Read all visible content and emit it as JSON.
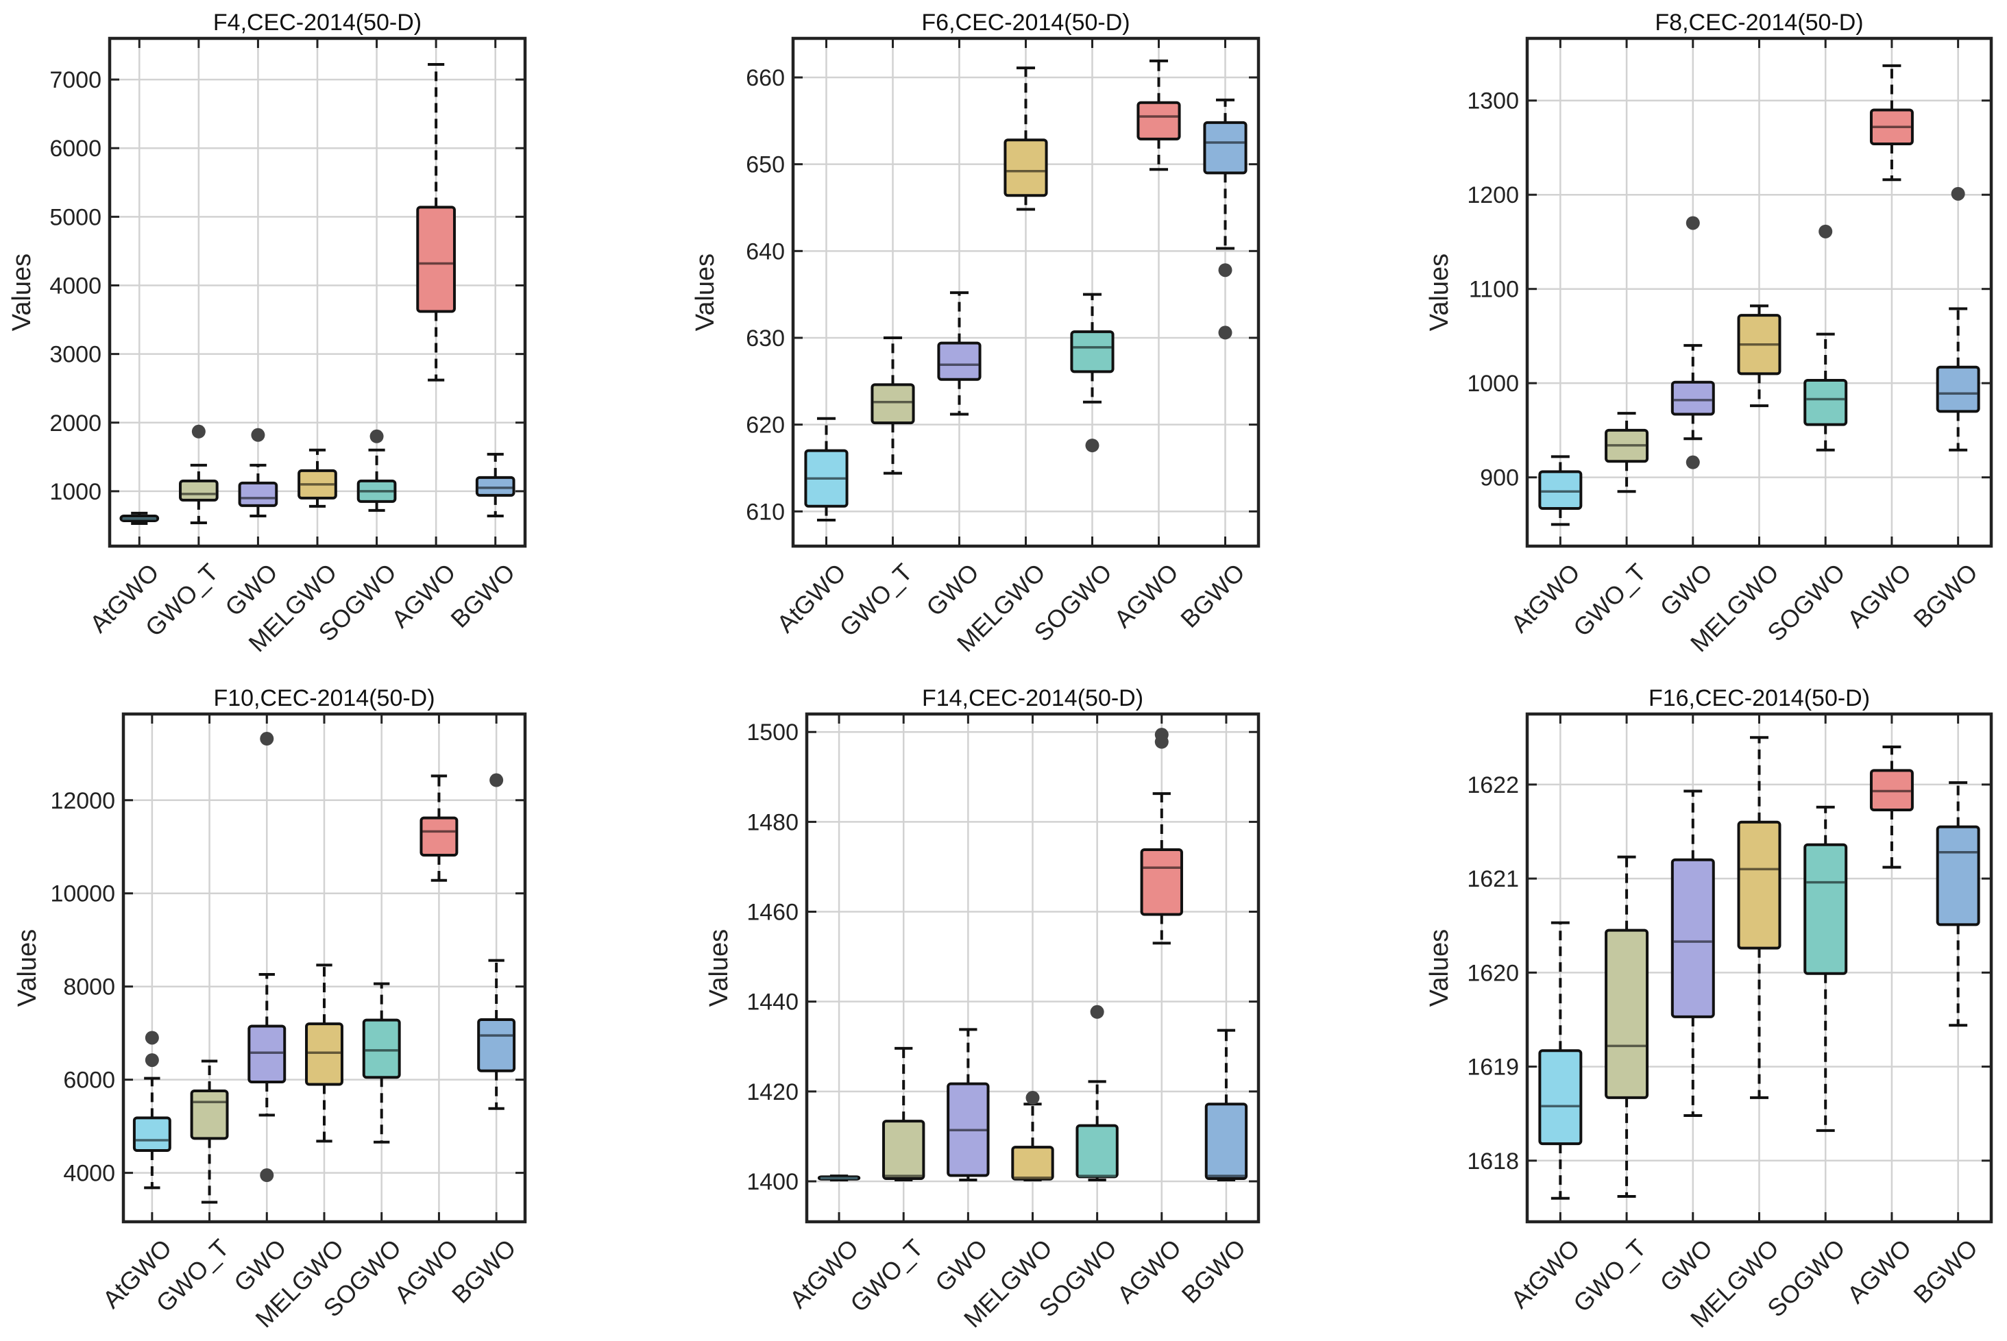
{
  "chart_data": [
    {
      "type": "boxplot",
      "title": "F4,CEC-2014(50-D)",
      "ylabel": "Values",
      "categories": [
        "AtGWO",
        "GWO_T",
        "GWO",
        "MELGWO",
        "SOGWO",
        "AGWO",
        "BGWO"
      ],
      "ylim": [
        200,
        7600
      ],
      "yticks": [
        1000,
        2000,
        3000,
        4000,
        5000,
        6000,
        7000
      ],
      "colors": [
        "#8fd6ea",
        "#c4c8a0",
        "#a7a8df",
        "#dcc47c",
        "#7fcbc2",
        "#ea8c8a",
        "#8cb3da"
      ],
      "boxes": [
        {
          "min": 530,
          "q1": 570,
          "median": 600,
          "q3": 640,
          "max": 680,
          "outliers": []
        },
        {
          "min": 540,
          "q1": 870,
          "median": 960,
          "q3": 1150,
          "max": 1380,
          "outliers": [
            1870
          ]
        },
        {
          "min": 640,
          "q1": 790,
          "median": 900,
          "q3": 1120,
          "max": 1380,
          "outliers": [
            1820
          ]
        },
        {
          "min": 780,
          "q1": 900,
          "median": 1100,
          "q3": 1300,
          "max": 1600,
          "outliers": []
        },
        {
          "min": 720,
          "q1": 850,
          "median": 1000,
          "q3": 1150,
          "max": 1600,
          "outliers": [
            1800
          ]
        },
        {
          "min": 2620,
          "q1": 3620,
          "median": 4320,
          "q3": 5140,
          "max": 7220,
          "outliers": []
        },
        {
          "min": 640,
          "q1": 940,
          "median": 1050,
          "q3": 1200,
          "max": 1540,
          "outliers": []
        }
      ]
    },
    {
      "type": "boxplot",
      "title": "F6,CEC-2014(50-D)",
      "ylabel": "Values",
      "categories": [
        "AtGWO",
        "GWO_T",
        "GWO",
        "MELGWO",
        "SOGWO",
        "AGWO",
        "BGWO"
      ],
      "ylim": [
        606,
        664.5
      ],
      "yticks": [
        610,
        620,
        630,
        640,
        650,
        660
      ],
      "colors": [
        "#8fd6ea",
        "#c4c8a0",
        "#a7a8df",
        "#dcc47c",
        "#7fcbc2",
        "#ea8c8a",
        "#8cb3da"
      ],
      "boxes": [
        {
          "min": 609,
          "q1": 610.6,
          "median": 613.8,
          "q3": 617,
          "max": 620.7,
          "outliers": []
        },
        {
          "min": 614.4,
          "q1": 620.2,
          "median": 622.6,
          "q3": 624.6,
          "max": 630,
          "outliers": []
        },
        {
          "min": 621.2,
          "q1": 625.2,
          "median": 626.9,
          "q3": 629.4,
          "max": 635.2,
          "outliers": []
        },
        {
          "min": 644.8,
          "q1": 646.4,
          "median": 649.2,
          "q3": 652.8,
          "max": 661.1,
          "outliers": []
        },
        {
          "min": 622.6,
          "q1": 626.1,
          "median": 628.9,
          "q3": 630.7,
          "max": 635,
          "outliers": [
            617.6
          ]
        },
        {
          "min": 649.4,
          "q1": 652.9,
          "median": 655.5,
          "q3": 657.1,
          "max": 661.9,
          "outliers": []
        },
        {
          "min": 640.3,
          "q1": 649,
          "median": 652.5,
          "q3": 654.8,
          "max": 657.4,
          "outliers": [
            637.8,
            630.6
          ]
        }
      ]
    },
    {
      "type": "boxplot",
      "title": "F8,CEC-2014(50-D)",
      "ylabel": "Values",
      "categories": [
        "AtGWO",
        "GWO_T",
        "GWO",
        "MELGWO",
        "SOGWO",
        "AGWO",
        "BGWO"
      ],
      "ylim": [
        827,
        1366
      ],
      "yticks": [
        900,
        1000,
        1100,
        1200,
        1300
      ],
      "colors": [
        "#8fd6ea",
        "#c4c8a0",
        "#a7a8df",
        "#dcc47c",
        "#7fcbc2",
        "#ea8c8a",
        "#8cb3da"
      ],
      "boxes": [
        {
          "min": 850,
          "q1": 867,
          "median": 885,
          "q3": 906,
          "max": 922,
          "outliers": []
        },
        {
          "min": 885,
          "q1": 917,
          "median": 934,
          "q3": 950,
          "max": 968,
          "outliers": []
        },
        {
          "min": 941,
          "q1": 967,
          "median": 982,
          "q3": 1001,
          "max": 1040,
          "outliers": [
            1170,
            916
          ]
        },
        {
          "min": 976,
          "q1": 1010,
          "median": 1041,
          "q3": 1072,
          "max": 1082,
          "outliers": []
        },
        {
          "min": 929,
          "q1": 956,
          "median": 983,
          "q3": 1003,
          "max": 1052,
          "outliers": [
            1161
          ]
        },
        {
          "min": 1216,
          "q1": 1254,
          "median": 1272,
          "q3": 1290,
          "max": 1337,
          "outliers": []
        },
        {
          "min": 929,
          "q1": 970,
          "median": 989,
          "q3": 1017,
          "max": 1079,
          "outliers": [
            1201
          ]
        }
      ]
    },
    {
      "type": "boxplot",
      "title": "F10,CEC-2014(50-D)",
      "ylabel": "Values",
      "categories": [
        "AtGWO",
        "GWO_T",
        "GWO",
        "MELGWO",
        "SOGWO",
        "AGWO",
        "BGWO"
      ],
      "ylim": [
        2950,
        13850
      ],
      "yticks": [
        4000,
        6000,
        8000,
        10000,
        12000
      ],
      "colors": [
        "#8fd6ea",
        "#c4c8a0",
        "#a7a8df",
        "#dcc47c",
        "#7fcbc2",
        "#ea8c8a",
        "#8cb3da"
      ],
      "boxes": [
        {
          "min": 3680,
          "q1": 4480,
          "median": 4700,
          "q3": 5180,
          "max": 6030,
          "outliers": [
            6900,
            6420
          ]
        },
        {
          "min": 3370,
          "q1": 4740,
          "median": 5520,
          "q3": 5760,
          "max": 6400,
          "outliers": []
        },
        {
          "min": 5240,
          "q1": 5950,
          "median": 6580,
          "q3": 7150,
          "max": 8260,
          "outliers": [
            13320,
            3950
          ]
        },
        {
          "min": 4680,
          "q1": 5900,
          "median": 6580,
          "q3": 7200,
          "max": 8460,
          "outliers": []
        },
        {
          "min": 4660,
          "q1": 6050,
          "median": 6630,
          "q3": 7280,
          "max": 8060,
          "outliers": []
        },
        {
          "min": 10280,
          "q1": 10820,
          "median": 11330,
          "q3": 11620,
          "max": 12520,
          "outliers": []
        },
        {
          "min": 5380,
          "q1": 6190,
          "median": 6950,
          "q3": 7290,
          "max": 8560,
          "outliers": [
            12430
          ]
        }
      ]
    },
    {
      "type": "boxplot",
      "title": "F14,CEC-2014(50-D)",
      "ylabel": "Values",
      "categories": [
        "AtGWO",
        "GWO_T",
        "GWO",
        "MELGWO",
        "SOGWO",
        "AGWO",
        "BGWO"
      ],
      "ylim": [
        1391,
        1504
      ],
      "yticks": [
        1400,
        1420,
        1440,
        1460,
        1480,
        1500
      ],
      "colors": [
        "#8fd6ea",
        "#c4c8a0",
        "#a7a8df",
        "#dcc47c",
        "#7fcbc2",
        "#ea8c8a",
        "#8cb3da"
      ],
      "boxes": [
        {
          "min": 1400.3,
          "q1": 1400.5,
          "median": 1400.7,
          "q3": 1401,
          "max": 1401.2,
          "outliers": []
        },
        {
          "min": 1400.3,
          "q1": 1400.6,
          "median": 1401.2,
          "q3": 1413.4,
          "max": 1429.6,
          "outliers": []
        },
        {
          "min": 1400.3,
          "q1": 1401.3,
          "median": 1411.4,
          "q3": 1421.7,
          "max": 1433.8,
          "outliers": []
        },
        {
          "min": 1400.3,
          "q1": 1400.5,
          "median": 1400.8,
          "q3": 1407.6,
          "max": 1417.2,
          "outliers": [
            1418.6
          ]
        },
        {
          "min": 1400.3,
          "q1": 1401,
          "median": 1401.2,
          "q3": 1412.4,
          "max": 1422.2,
          "outliers": [
            1437.7
          ]
        },
        {
          "min": 1453,
          "q1": 1459.4,
          "median": 1469.8,
          "q3": 1473.8,
          "max": 1486.3,
          "outliers": [
            1499.4,
            1497.8
          ]
        },
        {
          "min": 1400.3,
          "q1": 1400.6,
          "median": 1401.2,
          "q3": 1417.2,
          "max": 1433.6,
          "outliers": []
        }
      ]
    },
    {
      "type": "boxplot",
      "title": "F16,CEC-2014(50-D)",
      "ylabel": "Values",
      "categories": [
        "AtGWO",
        "GWO_T",
        "GWO",
        "MELGWO",
        "SOGWO",
        "AGWO",
        "BGWO"
      ],
      "ylim": [
        1617.35,
        1622.75
      ],
      "yticks": [
        1618,
        1619,
        1620,
        1621,
        1622
      ],
      "colors": [
        "#8fd6ea",
        "#c4c8a0",
        "#a7a8df",
        "#dcc47c",
        "#7fcbc2",
        "#ea8c8a",
        "#8cb3da"
      ],
      "boxes": [
        {
          "min": 1617.6,
          "q1": 1618.18,
          "median": 1618.58,
          "q3": 1619.17,
          "max": 1620.53,
          "outliers": []
        },
        {
          "min": 1617.62,
          "q1": 1618.67,
          "median": 1619.22,
          "q3": 1620.45,
          "max": 1621.23,
          "outliers": []
        },
        {
          "min": 1618.48,
          "q1": 1619.53,
          "median": 1620.33,
          "q3": 1621.2,
          "max": 1621.93,
          "outliers": []
        },
        {
          "min": 1618.67,
          "q1": 1620.26,
          "median": 1621.1,
          "q3": 1621.6,
          "max": 1622.5,
          "outliers": []
        },
        {
          "min": 1618.32,
          "q1": 1619.99,
          "median": 1620.96,
          "q3": 1621.36,
          "max": 1621.76,
          "outliers": []
        },
        {
          "min": 1621.12,
          "q1": 1621.73,
          "median": 1621.93,
          "q3": 1622.15,
          "max": 1622.4,
          "outliers": []
        },
        {
          "min": 1619.44,
          "q1": 1620.51,
          "median": 1621.28,
          "q3": 1621.55,
          "max": 1622.02,
          "outliers": []
        }
      ]
    }
  ]
}
